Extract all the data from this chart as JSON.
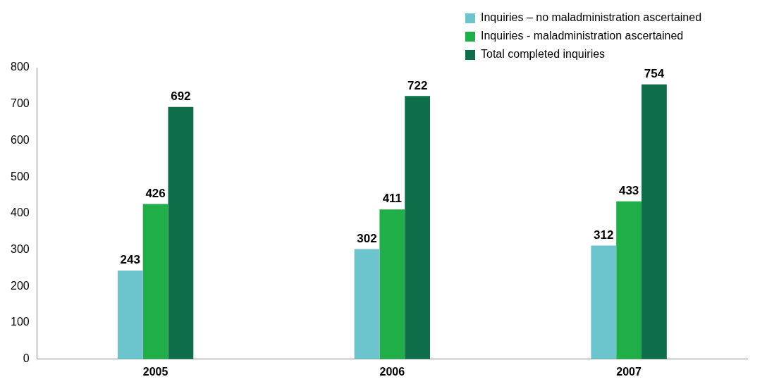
{
  "chart_data": {
    "type": "bar",
    "categories": [
      "2005",
      "2006",
      "2007"
    ],
    "series": [
      {
        "name": "Inquiries – no maladministration ascertained",
        "color": "#6cc4cc",
        "values": [
          243,
          302,
          312
        ]
      },
      {
        "name": "Inquiries - maladministration ascertained",
        "color": "#1fae48",
        "values": [
          426,
          411,
          433
        ]
      },
      {
        "name": "Total completed inquiries",
        "color": "#0e6e4a",
        "values": [
          692,
          722,
          754
        ]
      }
    ],
    "ylim": [
      0,
      800
    ],
    "yticks": [
      0,
      100,
      200,
      300,
      400,
      500,
      600,
      700,
      800
    ],
    "grid": false,
    "legend": "top right",
    "data_labels": true
  }
}
